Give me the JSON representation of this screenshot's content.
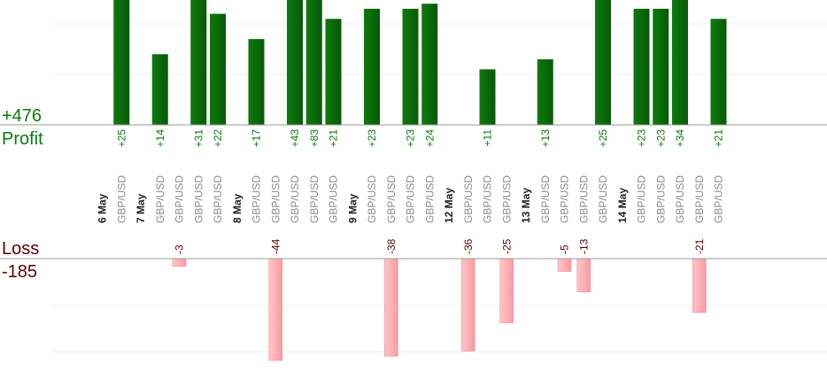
{
  "summary": {
    "profit_total": "+476",
    "profit_label": "Profit",
    "loss_label": "Loss",
    "loss_total": "-185"
  },
  "colors": {
    "profit_bar": "#0a6a0a",
    "profit_text": "#0a7a0a",
    "loss_bar": "#ffb3b8",
    "loss_text": "#5a0000",
    "pair_text": "#8c8c8c",
    "date_text": "#222222"
  },
  "chart_data": {
    "type": "bar",
    "profit_ylim": [
      0,
      25
    ],
    "loss_ylim": [
      -40,
      0
    ],
    "columns": [
      {
        "kind": "date",
        "label": "6 May"
      },
      {
        "kind": "trade",
        "label": "GBP/USD",
        "value": 25
      },
      {
        "kind": "date",
        "label": "7 May"
      },
      {
        "kind": "trade",
        "label": "GBP/USD",
        "value": 14
      },
      {
        "kind": "trade",
        "label": "GBP/USD",
        "value": -3
      },
      {
        "kind": "trade",
        "label": "GBP/USD",
        "value": 31
      },
      {
        "kind": "trade",
        "label": "GBP/USD",
        "value": 22
      },
      {
        "kind": "date",
        "label": "8 May"
      },
      {
        "kind": "trade",
        "label": "GBP/USD",
        "value": 17
      },
      {
        "kind": "trade",
        "label": "GBP/USD",
        "value": -44
      },
      {
        "kind": "trade",
        "label": "GBP/USD",
        "value": 43
      },
      {
        "kind": "trade",
        "label": "GBP/USD",
        "value": 83
      },
      {
        "kind": "trade",
        "label": "GBP/USD",
        "value": 21
      },
      {
        "kind": "date",
        "label": "9 May"
      },
      {
        "kind": "trade",
        "label": "GBP/USD",
        "value": 23
      },
      {
        "kind": "trade",
        "label": "GBP/USD",
        "value": -38
      },
      {
        "kind": "trade",
        "label": "GBP/USD",
        "value": 23
      },
      {
        "kind": "trade",
        "label": "GBP/USD",
        "value": 24
      },
      {
        "kind": "date",
        "label": "12 May"
      },
      {
        "kind": "trade",
        "label": "GBP/USD",
        "value": -36
      },
      {
        "kind": "trade",
        "label": "GBP/USD",
        "value": 11
      },
      {
        "kind": "trade",
        "label": "GBP/USD",
        "value": -25
      },
      {
        "kind": "date",
        "label": "13 May"
      },
      {
        "kind": "trade",
        "label": "GBP/USD",
        "value": 13
      },
      {
        "kind": "trade",
        "label": "GBP/USD",
        "value": -5
      },
      {
        "kind": "trade",
        "label": "GBP/USD",
        "value": -13
      },
      {
        "kind": "trade",
        "label": "GBP/USD",
        "value": 25
      },
      {
        "kind": "date",
        "label": "14 May"
      },
      {
        "kind": "trade",
        "label": "GBP/USD",
        "value": 23
      },
      {
        "kind": "trade",
        "label": "GBP/USD",
        "value": 23
      },
      {
        "kind": "trade",
        "label": "GBP/USD",
        "value": 34
      },
      {
        "kind": "trade",
        "label": "GBP/USD",
        "value": -21
      },
      {
        "kind": "trade",
        "label": "GBP/USD",
        "value": 21
      }
    ]
  }
}
